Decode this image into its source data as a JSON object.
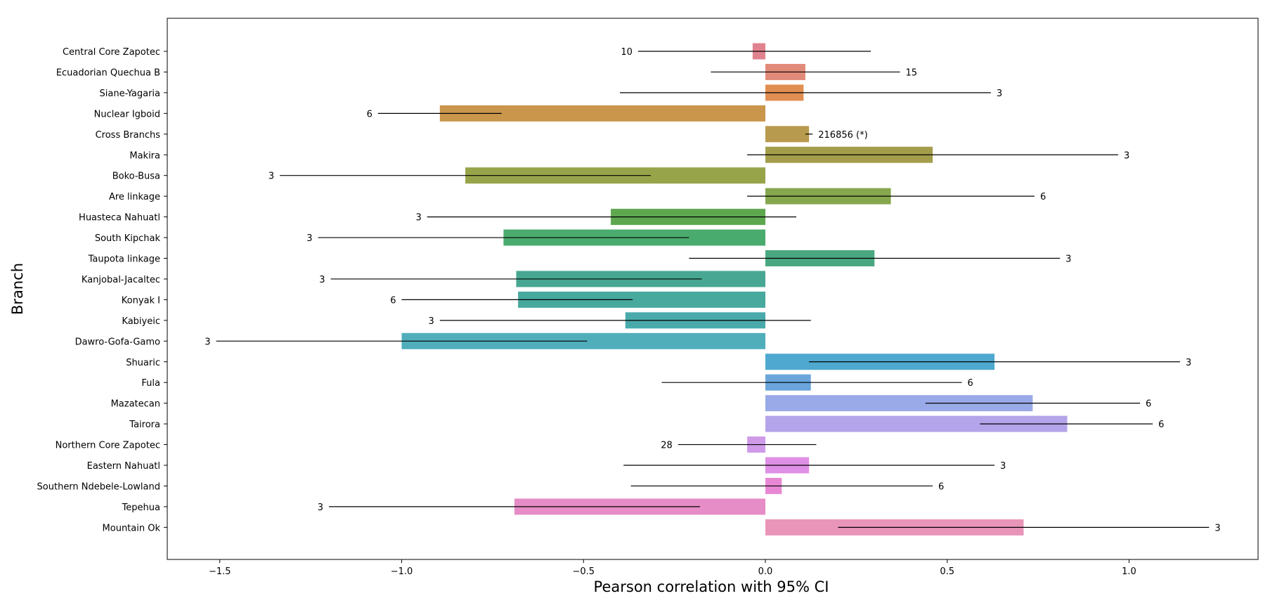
{
  "chart_data": {
    "type": "bar",
    "orientation": "horizontal",
    "xlabel": "Pearson correlation with 95% CI",
    "ylabel": "Branch",
    "xlim": [
      -1.64,
      1.35
    ],
    "xticks": [
      {
        "v": -1.5,
        "label": "−1.5"
      },
      {
        "v": -1.0,
        "label": "−1.0"
      },
      {
        "v": -0.5,
        "label": "−0.5"
      },
      {
        "v": 0.0,
        "label": "0.0"
      },
      {
        "v": 0.5,
        "label": "0.5"
      },
      {
        "v": 1.0,
        "label": "1.0"
      }
    ],
    "grid": false,
    "bars": [
      {
        "branch": "Central Core Zapotec",
        "value": -0.035,
        "ci": [
          -0.35,
          0.29
        ],
        "n": "10",
        "color": "#e1828f"
      },
      {
        "branch": "Ecuadorian Quechua B",
        "value": 0.11,
        "ci": [
          -0.15,
          0.37
        ],
        "n": "15",
        "color": "#e28a79"
      },
      {
        "branch": "Siane-Yagaria",
        "value": 0.105,
        "ci": [
          -0.4,
          0.62
        ],
        "n": "3",
        "color": "#e08e51"
      },
      {
        "branch": "Nuclear Igboid",
        "value": -0.895,
        "ci": [
          -1.065,
          -0.725
        ],
        "n": "6",
        "color": "#c9964c"
      },
      {
        "branch": "Cross Branchs",
        "value": 0.12,
        "ci": [
          0.11,
          0.13
        ],
        "n": "216856 (*)",
        "color": "#b89a4e"
      },
      {
        "branch": "Makira",
        "value": 0.46,
        "ci": [
          -0.05,
          0.97
        ],
        "n": "3",
        "color": "#a49d4b"
      },
      {
        "branch": "Boko-Busa",
        "value": -0.825,
        "ci": [
          -1.335,
          -0.315
        ],
        "n": "3",
        "color": "#98a44a"
      },
      {
        "branch": "Are linkage",
        "value": 0.345,
        "ci": [
          -0.05,
          0.74
        ],
        "n": "6",
        "color": "#86a74d"
      },
      {
        "branch": "Huasteca Nahuatl",
        "value": -0.425,
        "ci": [
          -0.93,
          0.085
        ],
        "n": "3",
        "color": "#5ea74f"
      },
      {
        "branch": "South Kipchak",
        "value": -0.72,
        "ci": [
          -1.23,
          -0.21
        ],
        "n": "3",
        "color": "#4aab6e"
      },
      {
        "branch": "Taupota linkage",
        "value": 0.3,
        "ci": [
          -0.21,
          0.81
        ],
        "n": "3",
        "color": "#4aa881"
      },
      {
        "branch": "Kanjobal-Jacaltec",
        "value": -0.685,
        "ci": [
          -1.195,
          -0.175
        ],
        "n": "3",
        "color": "#47a792"
      },
      {
        "branch": "Konyak I",
        "value": -0.68,
        "ci": [
          -1.0,
          -0.365
        ],
        "n": "6",
        "color": "#48a99e"
      },
      {
        "branch": "Kabiyeic",
        "value": -0.385,
        "ci": [
          -0.895,
          0.125
        ],
        "n": "3",
        "color": "#4aaaab"
      },
      {
        "branch": "Dawro-Gofa-Gamo",
        "value": -1.0,
        "ci": [
          -1.51,
          -0.49
        ],
        "n": "3",
        "color": "#50aebb"
      },
      {
        "branch": "Shuaric",
        "value": 0.63,
        "ci": [
          0.12,
          1.14
        ],
        "n": "3",
        "color": "#4fa8cf"
      },
      {
        "branch": "Fula",
        "value": 0.125,
        "ci": [
          -0.285,
          0.54
        ],
        "n": "6",
        "color": "#6aa5db"
      },
      {
        "branch": "Mazatecan",
        "value": 0.735,
        "ci": [
          0.44,
          1.03
        ],
        "n": "6",
        "color": "#9aaae8"
      },
      {
        "branch": "Tairora",
        "value": 0.83,
        "ci": [
          0.59,
          1.065
        ],
        "n": "6",
        "color": "#b4a4ea"
      },
      {
        "branch": "Northern Core Zapotec",
        "value": -0.05,
        "ci": [
          -0.24,
          0.14
        ],
        "n": "28",
        "color": "#cf9be9"
      },
      {
        "branch": "Eastern Nahuatl",
        "value": 0.12,
        "ci": [
          -0.39,
          0.63
        ],
        "n": "3",
        "color": "#df8fe5"
      },
      {
        "branch": "Southern Ndebele-Lowland",
        "value": 0.045,
        "ci": [
          -0.37,
          0.46
        ],
        "n": "6",
        "color": "#e888d5"
      },
      {
        "branch": "Tepehua",
        "value": -0.69,
        "ci": [
          -1.2,
          -0.18
        ],
        "n": "3",
        "color": "#e68cc6"
      },
      {
        "branch": "Mountain Ok",
        "value": 0.71,
        "ci": [
          0.2,
          1.22
        ],
        "n": "3",
        "color": "#e994b9"
      }
    ]
  }
}
